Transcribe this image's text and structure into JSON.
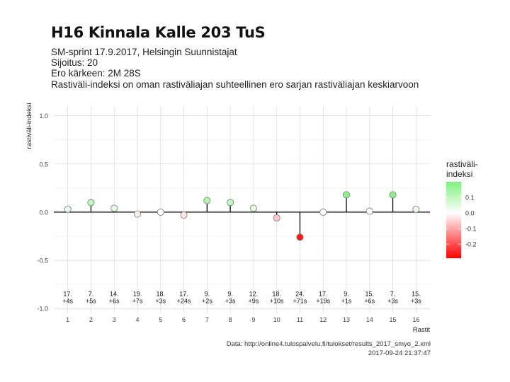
{
  "header": {
    "title": "H16 Kinnala Kalle 203 TuS",
    "subtitle_lines": [
      "SM-sprint 17.9.2017, Helsingin Suunnistajat",
      "Sijoitus: 20",
      "Ero kärkeen: 2M 28S",
      "Rastiväli-indeksi on oman rastiväliajan suhteellinen ero sarjan rastiväliajan keskiarvoon"
    ]
  },
  "caption": {
    "source": "Data: http://online4.tulospalvelu.fi/tulokset/results_2017_smyo_2.xml",
    "timestamp": "2017-09-24 21:37:47"
  },
  "chart_data": {
    "type": "scatter",
    "style": "lollipop",
    "xlabel": "Rastit",
    "ylabel": "rastiväli-indeksi",
    "xlim": [
      0.4,
      16.6
    ],
    "ylim": [
      -1.05,
      1.1
    ],
    "yticks": [
      -1.0,
      -0.5,
      0.0,
      0.5,
      1.0
    ],
    "ytick_labels": [
      "-1.0",
      "-0.5",
      "0.0",
      "0.5",
      "1.0"
    ],
    "xticks": [
      1,
      2,
      3,
      4,
      5,
      6,
      7,
      8,
      9,
      10,
      11,
      12,
      13,
      14,
      15,
      16
    ],
    "grid": true,
    "points": [
      {
        "x": 1,
        "y": 0.03,
        "rank": "17.",
        "diff": "+4s"
      },
      {
        "x": 2,
        "y": 0.1,
        "rank": "7.",
        "diff": "+5s"
      },
      {
        "x": 3,
        "y": 0.04,
        "rank": "14.",
        "diff": "+6s"
      },
      {
        "x": 4,
        "y": -0.02,
        "rank": "19.",
        "diff": "+7s"
      },
      {
        "x": 5,
        "y": 0.0,
        "rank": "18.",
        "diff": "+3s"
      },
      {
        "x": 6,
        "y": -0.03,
        "rank": "17.",
        "diff": "+24s"
      },
      {
        "x": 7,
        "y": 0.12,
        "rank": "9.",
        "diff": "+2s"
      },
      {
        "x": 8,
        "y": 0.1,
        "rank": "9.",
        "diff": "+3s"
      },
      {
        "x": 9,
        "y": 0.04,
        "rank": "12.",
        "diff": "+9s"
      },
      {
        "x": 10,
        "y": -0.06,
        "rank": "18.",
        "diff": "+10s"
      },
      {
        "x": 11,
        "y": -0.26,
        "rank": "24.",
        "diff": "+71s"
      },
      {
        "x": 12,
        "y": 0.0,
        "rank": "17.",
        "diff": "+19s"
      },
      {
        "x": 13,
        "y": 0.18,
        "rank": "9.",
        "diff": "+1s"
      },
      {
        "x": 14,
        "y": 0.01,
        "rank": "15.",
        "diff": "+6s"
      },
      {
        "x": 15,
        "y": 0.18,
        "rank": "7.",
        "diff": "+3s"
      },
      {
        "x": 16,
        "y": 0.03,
        "rank": "15.",
        "diff": "+3s"
      }
    ],
    "legend": {
      "title_lines": [
        "rastiväli-",
        "indeksi"
      ],
      "position": "right",
      "range": [
        -0.29,
        0.2
      ],
      "ticks": [
        0.1,
        0.0,
        -0.1,
        -0.2
      ],
      "tick_labels": [
        "0.1",
        "0.0",
        "-0.1",
        "-0.2"
      ],
      "colors": {
        "low": "#ff0000",
        "mid": "#ffffff",
        "high": "#7ff07f"
      }
    }
  }
}
